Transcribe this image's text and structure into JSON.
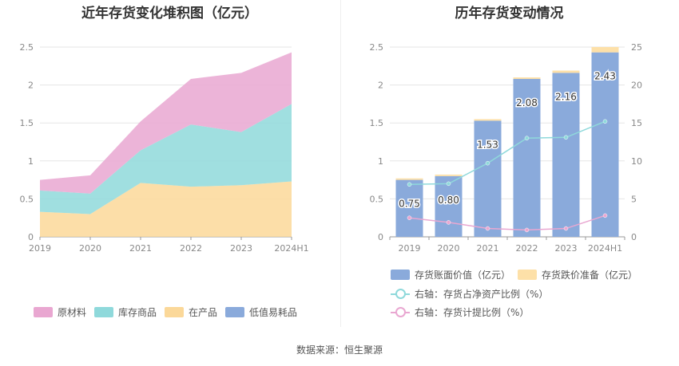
{
  "source": "数据来源：恒生聚源",
  "colors": {
    "raw_material": "#e9a7d1",
    "inventory_goods": "#8fd9db",
    "wip": "#fbd899",
    "low_value": "#8aaadb",
    "bar_main": "#8aaadb",
    "bar_reserve": "#fde0a8",
    "line_ratio_assets": "#8fd9db",
    "line_ratio_reserve": "#e9a7d1"
  },
  "chart_data": [
    {
      "type": "area",
      "stacked": true,
      "title": "近年存货变化堆积图（亿元）",
      "categories": [
        "2019",
        "2020",
        "2021",
        "2022",
        "2023",
        "2024H1"
      ],
      "ylim": [
        0,
        2.5
      ],
      "yticks": [
        "0",
        "0.5",
        "1",
        "1.5",
        "2",
        "2.5"
      ],
      "grid": true,
      "legend_position": "bottom",
      "series": [
        {
          "name": "在产品",
          "values": [
            0.33,
            0.3,
            0.71,
            0.66,
            0.68,
            0.73
          ]
        },
        {
          "name": "库存商品",
          "values": [
            0.28,
            0.27,
            0.43,
            0.82,
            0.7,
            1.02
          ]
        },
        {
          "name": "原材料",
          "values": [
            0.14,
            0.24,
            0.38,
            0.6,
            0.78,
            0.68
          ]
        },
        {
          "name": "低值易耗品",
          "values": [
            0,
            0,
            0,
            0,
            0,
            0
          ]
        }
      ],
      "legend": [
        "原材料",
        "库存商品",
        "在产品",
        "低值易耗品"
      ]
    },
    {
      "type": "bar",
      "stacked": true,
      "title": "历年存货变动情况",
      "categories": [
        "2019",
        "2020",
        "2021",
        "2022",
        "2023",
        "2024H1"
      ],
      "ylim": [
        0,
        2.5
      ],
      "yticks": [
        "0",
        "0.5",
        "1",
        "1.5",
        "2",
        "2.5"
      ],
      "y2lim": [
        0,
        25
      ],
      "y2ticks": [
        "0",
        "5",
        "10",
        "15",
        "20",
        "25"
      ],
      "grid": true,
      "legend_position": "bottom",
      "series": [
        {
          "name": "存货账面价值（亿元）",
          "values": [
            0.75,
            0.8,
            1.53,
            2.08,
            2.16,
            2.43
          ],
          "labels": [
            "0.75",
            "0.80",
            "1.53",
            "2.08",
            "2.16",
            "2.43"
          ]
        },
        {
          "name": "存货跌价准备（亿元）",
          "values": [
            0.02,
            0.02,
            0.02,
            0.02,
            0.03,
            0.07
          ]
        }
      ],
      "line_series": [
        {
          "name": "右轴：存货占净资产比例（%）",
          "axis": "right",
          "values": [
            6.9,
            7.0,
            9.7,
            13.0,
            13.1,
            15.2
          ]
        },
        {
          "name": "右轴：存货计提比例（%）",
          "axis": "right",
          "values": [
            2.5,
            1.9,
            1.1,
            0.9,
            1.1,
            2.8
          ]
        }
      ]
    }
  ]
}
